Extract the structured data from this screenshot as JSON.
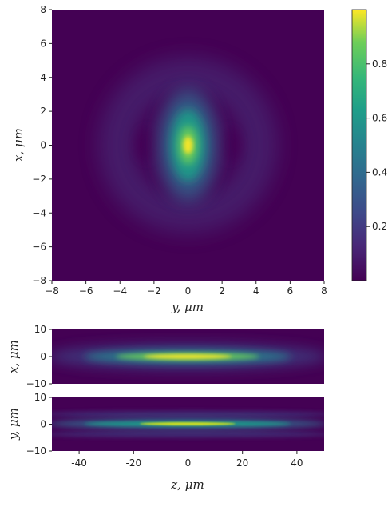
{
  "chart_data": [
    {
      "type": "heatmap",
      "panel": "top",
      "xlabel": "y,  μm",
      "ylabel": "x,  μm",
      "xlim": [
        -8,
        8
      ],
      "ylim": [
        -8,
        8
      ],
      "xticks": [
        "−8",
        "−6",
        "−4",
        "−2",
        "0",
        "2",
        "4",
        "6",
        "8"
      ],
      "yticks": [
        "−8",
        "−6",
        "−4",
        "−2",
        "0",
        "2",
        "4",
        "6",
        "8"
      ],
      "description": "central bright lobe peak ~1.0 at (0,0), elliptical (elongated in x), surrounded by a dim ring of radius ~3.5 μm with intensity ~0.15",
      "colorbar": {
        "colormap": "viridis",
        "range": [
          0,
          1
        ],
        "ticks": [
          "0.2",
          "0.4",
          "0.6",
          "0.8"
        ]
      }
    },
    {
      "type": "heatmap",
      "panel": "middle",
      "ylabel": "x,  μm",
      "xlim": [
        -50,
        50
      ],
      "ylim": [
        -10,
        10
      ],
      "yticks": [
        "10",
        "0",
        "−10"
      ],
      "description": "elongated bright beam along z centered at x=0, peak near z=0"
    },
    {
      "type": "heatmap",
      "panel": "bottom",
      "xlabel": "z,  μm",
      "ylabel": "y,  μm",
      "xlim": [
        -50,
        50
      ],
      "ylim": [
        -10,
        10
      ],
      "xticks": [
        "-40",
        "-20",
        "0",
        "20",
        "40"
      ],
      "yticks": [
        "10",
        "0",
        "−10"
      ],
      "description": "thin central beam along z at y=0 with faint side lobes near y=±3"
    }
  ],
  "colors": {
    "viridis_low": "#440154",
    "viridis_high": "#fde725"
  }
}
